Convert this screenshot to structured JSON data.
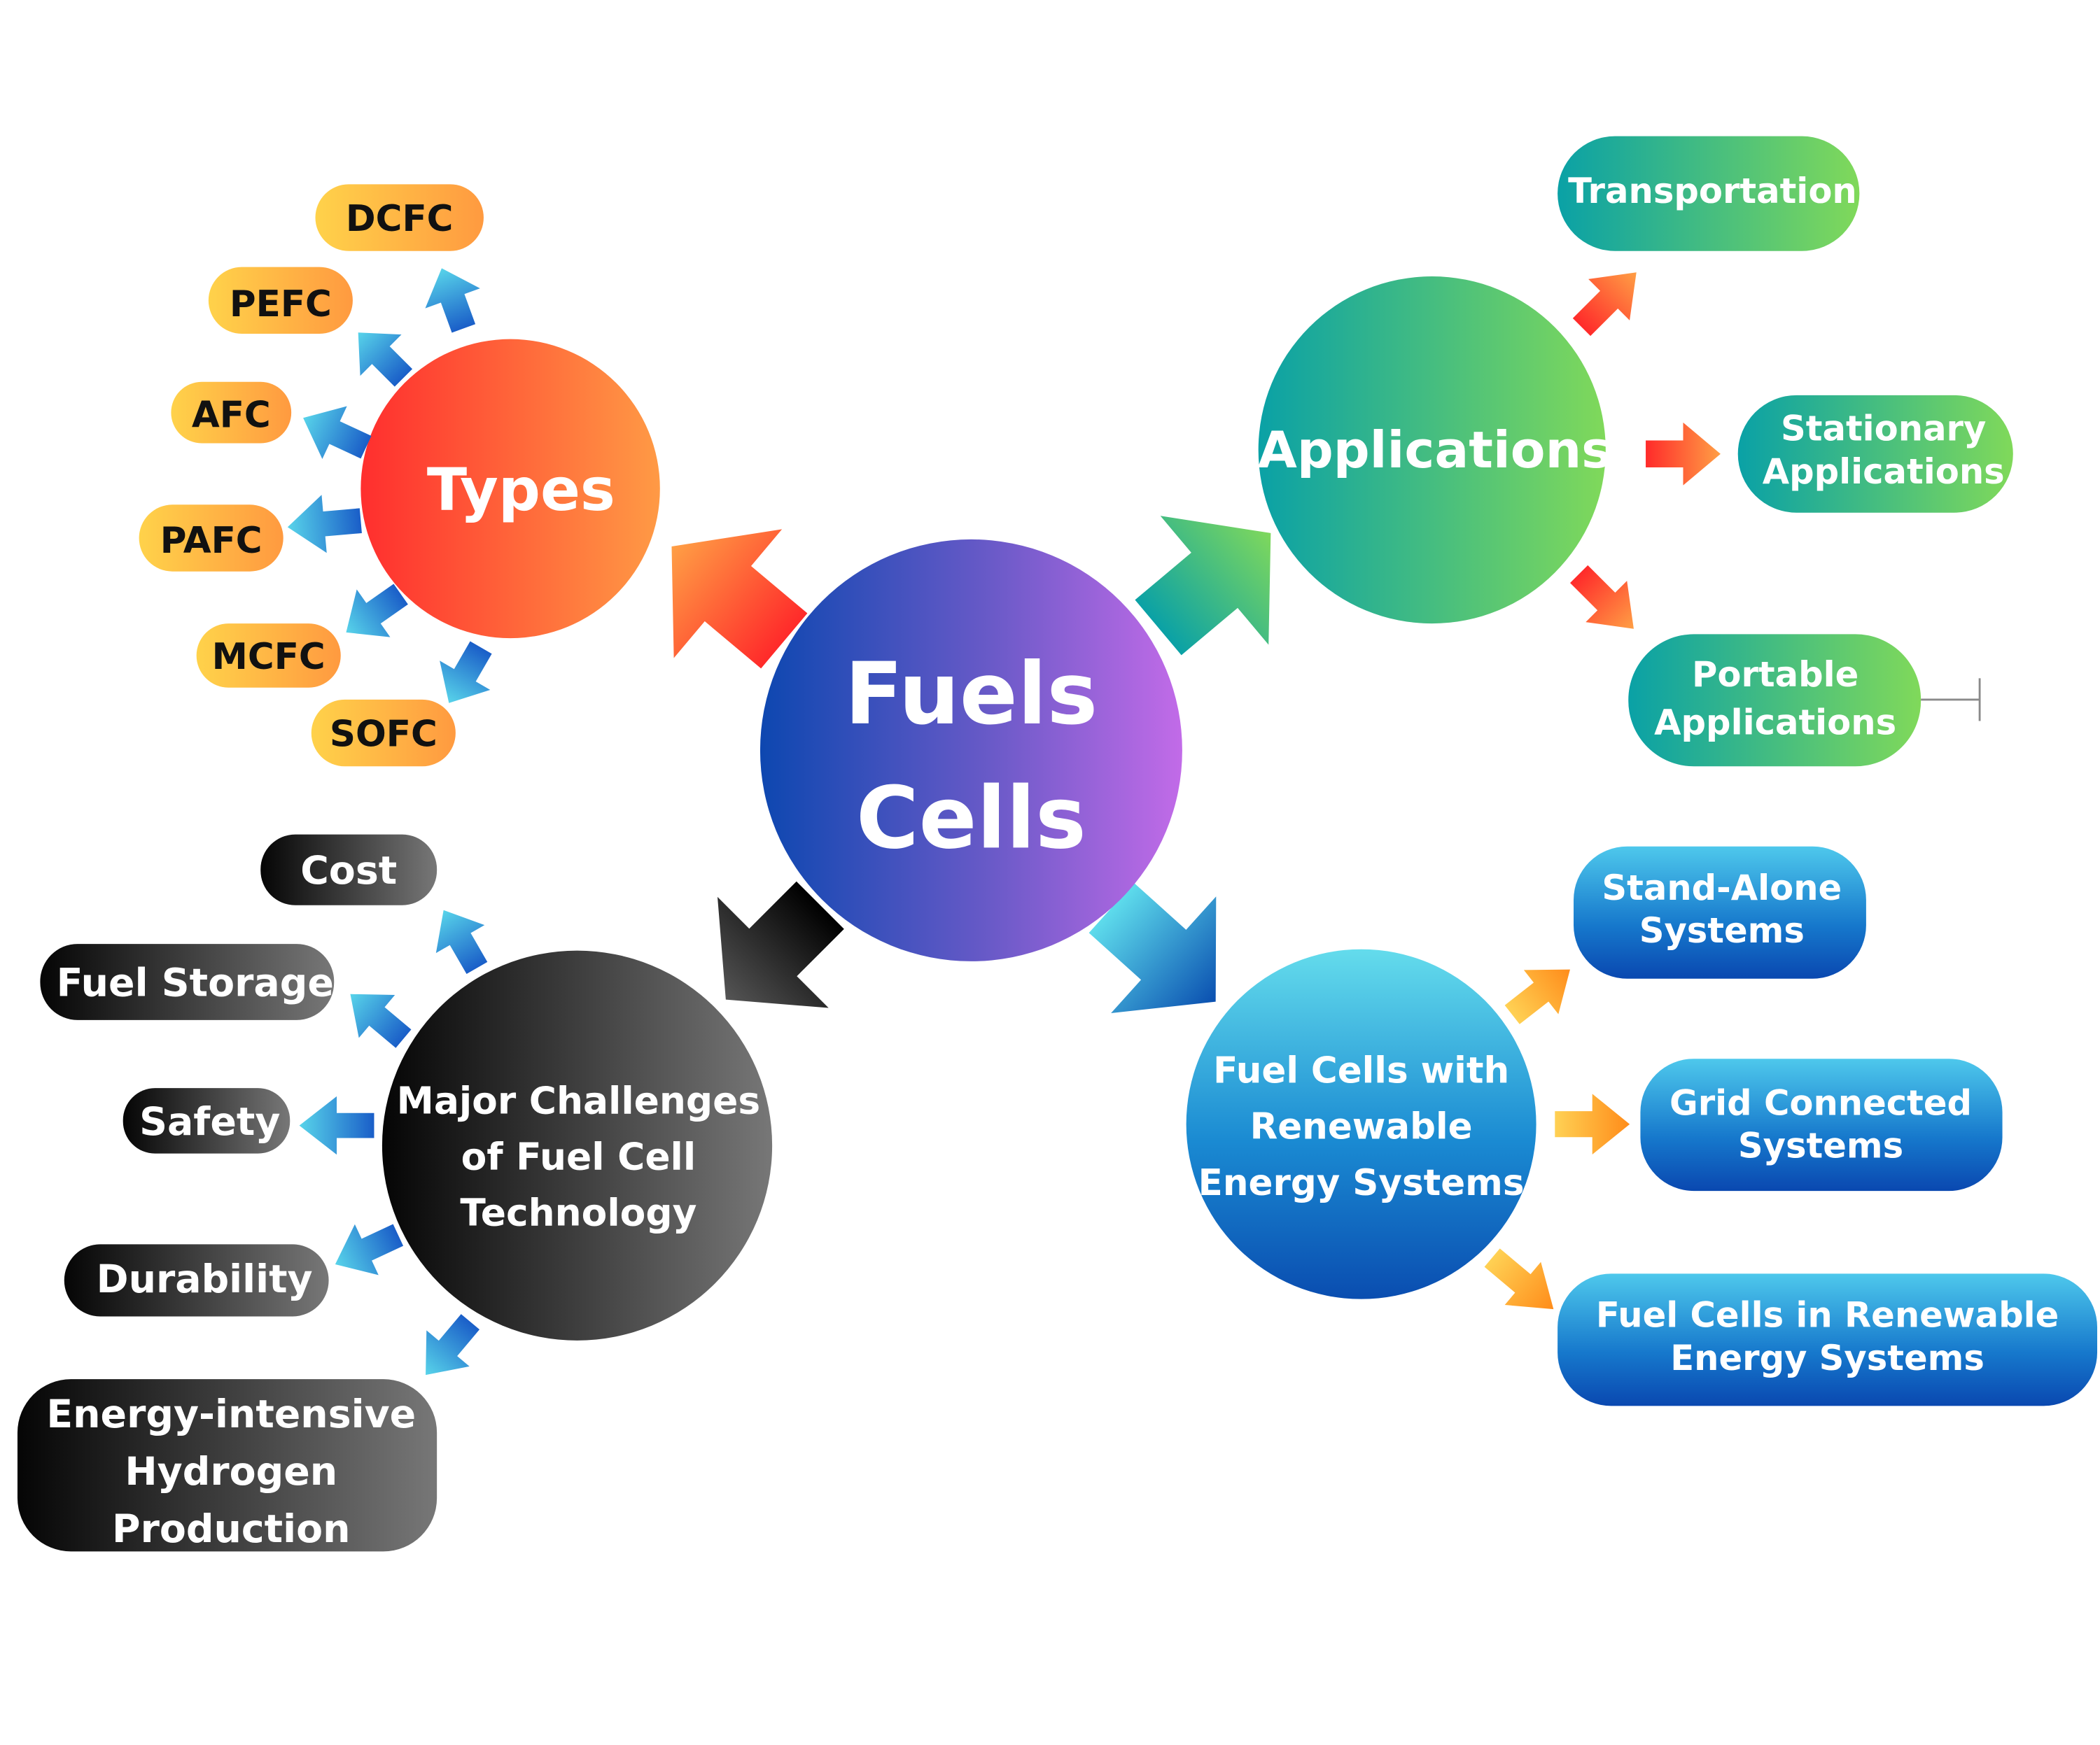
{
  "center": {
    "line1": "Fuels",
    "line2": "Cells"
  },
  "types": {
    "title": "Types",
    "items": [
      "DCFC",
      "PEFC",
      "AFC",
      "PAFC",
      "MCFC",
      "SOFC"
    ]
  },
  "applications": {
    "title": "Applications",
    "items": [
      {
        "line1": "Transportation",
        "line2": ""
      },
      {
        "line1": "Stationary",
        "line2": "Applications"
      },
      {
        "line1": "Portable",
        "line2": "Applications"
      }
    ]
  },
  "challenges": {
    "title_line1": "Major Challenges",
    "title_line2": "of Fuel Cell",
    "title_line3": "Technology",
    "items": [
      {
        "line1": "Cost"
      },
      {
        "line1": "Fuel Storage"
      },
      {
        "line1": "Safety"
      },
      {
        "line1": "Durability"
      },
      {
        "line1": "Energy-intensive",
        "line2": "Hydrogen",
        "line3": "Production"
      }
    ]
  },
  "renewable": {
    "title_line1": "Fuel Cells with",
    "title_line2": "Renewable",
    "title_line3": "Energy Systems",
    "items": [
      {
        "line1": "Stand-Alone",
        "line2": "Systems"
      },
      {
        "line1": "Grid Connected",
        "line2": "Systems"
      },
      {
        "line1": "Fuel Cells in Renewable",
        "line2": "Energy Systems"
      }
    ]
  },
  "colors": {
    "center": [
      "#0d47b0",
      "#c26be8"
    ],
    "types": [
      "#ff3030",
      "#ff9a45"
    ],
    "type_pill": [
      "#ffd24a",
      "#ff9a40"
    ],
    "applications": [
      "#0aa1a6",
      "#80d95a"
    ],
    "challenges": [
      "#0a0a0a",
      "#7a7a7a"
    ],
    "renewable": [
      "#64dcec",
      "#0a50b4"
    ],
    "arrow_blue": [
      "#1a5ec8",
      "#58d4ea"
    ],
    "arrow_red": [
      "#ff2a2a",
      "#ff9f45"
    ],
    "arrow_orange": [
      "#ff8c1a",
      "#ffd154"
    ]
  }
}
